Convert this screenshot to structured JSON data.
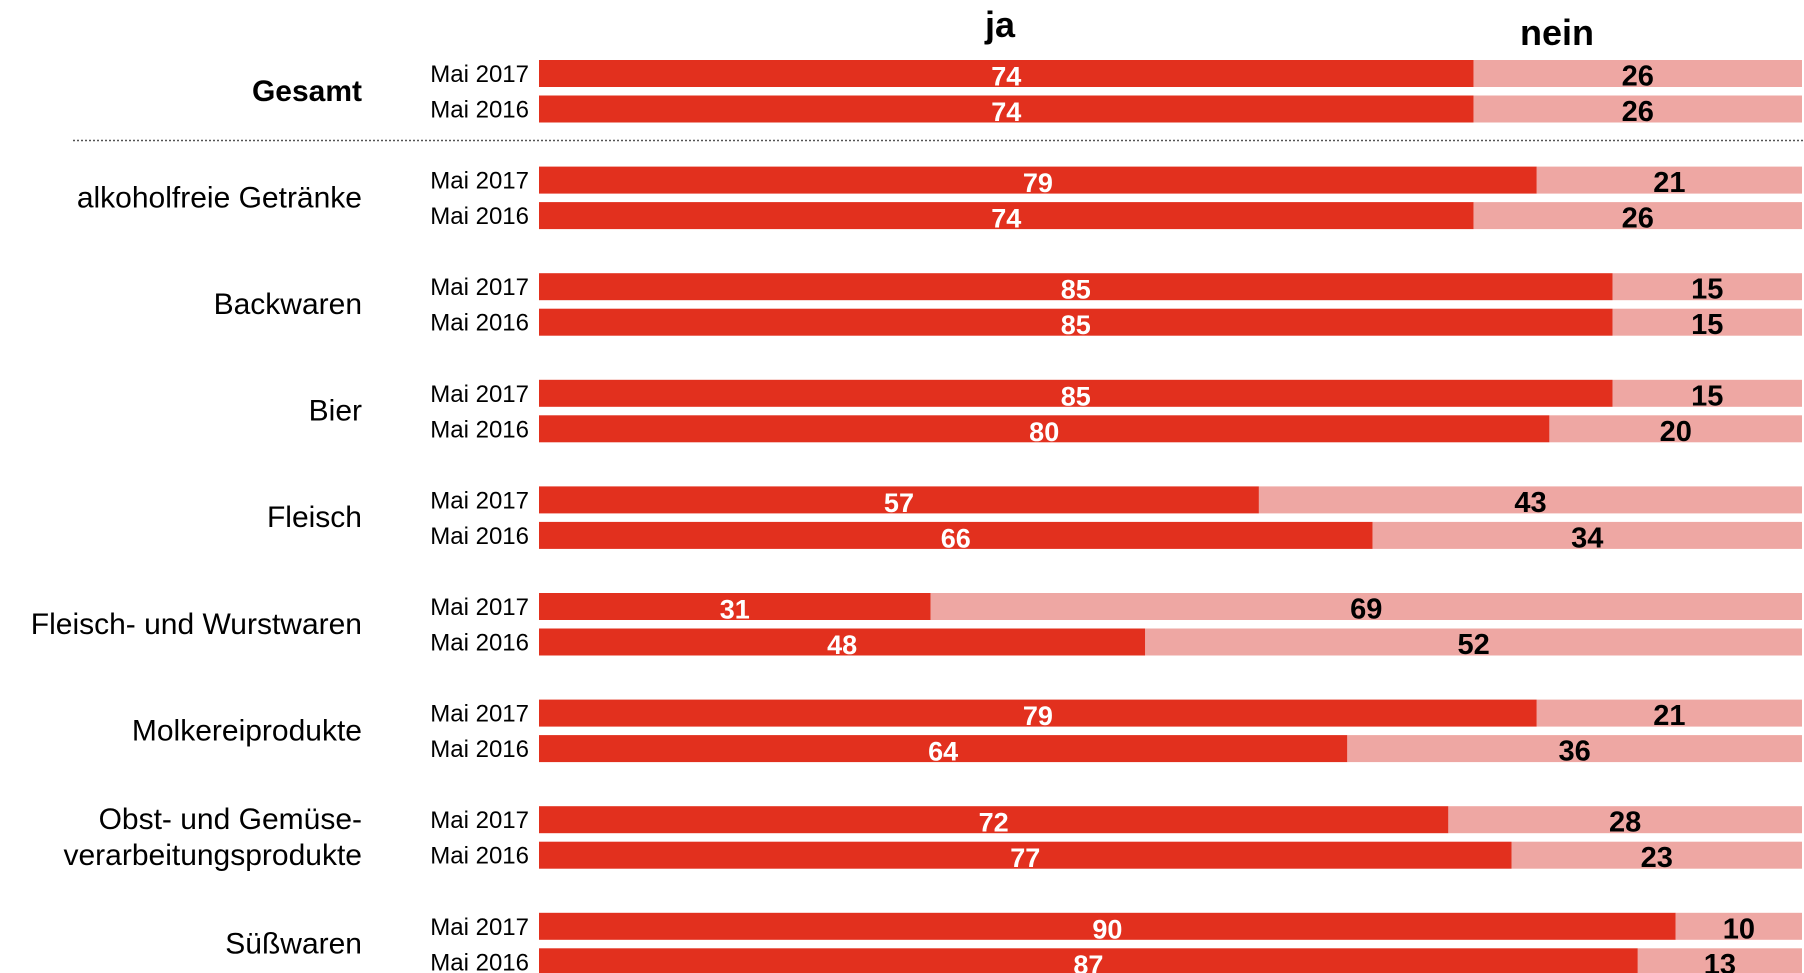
{
  "chart_data": {
    "type": "bar",
    "orientation": "horizontal",
    "stacked": true,
    "legend": {
      "ja": "ja",
      "nein": "nein"
    },
    "colors": {
      "ja": "#e2301e",
      "nein": "#eea7a3",
      "separator": "#555555"
    },
    "xlim": [
      0,
      100
    ],
    "separator_after_group": 0,
    "groups": [
      {
        "label": "Gesamt",
        "bold": true,
        "rows": [
          {
            "period": "Mai 2017",
            "ja": 74,
            "nein": 26
          },
          {
            "period": "Mai 2016",
            "ja": 74,
            "nein": 26
          }
        ]
      },
      {
        "label": "alkoholfreie Getränke",
        "rows": [
          {
            "period": "Mai 2017",
            "ja": 79,
            "nein": 21
          },
          {
            "period": "Mai 2016",
            "ja": 74,
            "nein": 26
          }
        ]
      },
      {
        "label": "Backwaren",
        "rows": [
          {
            "period": "Mai 2017",
            "ja": 85,
            "nein": 15
          },
          {
            "period": "Mai 2016",
            "ja": 85,
            "nein": 15
          }
        ]
      },
      {
        "label": "Bier",
        "rows": [
          {
            "period": "Mai 2017",
            "ja": 85,
            "nein": 15
          },
          {
            "period": "Mai 2016",
            "ja": 80,
            "nein": 20
          }
        ]
      },
      {
        "label": "Fleisch",
        "rows": [
          {
            "period": "Mai 2017",
            "ja": 57,
            "nein": 43
          },
          {
            "period": "Mai 2016",
            "ja": 66,
            "nein": 34
          }
        ]
      },
      {
        "label": "Fleisch- und Wurstwaren",
        "rows": [
          {
            "period": "Mai 2017",
            "ja": 31,
            "nein": 69
          },
          {
            "period": "Mai 2016",
            "ja": 48,
            "nein": 52
          }
        ]
      },
      {
        "label": "Molkereiprodukte",
        "rows": [
          {
            "period": "Mai 2017",
            "ja": 79,
            "nein": 21
          },
          {
            "period": "Mai 2016",
            "ja": 64,
            "nein": 36
          }
        ]
      },
      {
        "label": [
          "Obst- und Gemüse-",
          "verarbeitungsprodukte"
        ],
        "rows": [
          {
            "period": "Mai 2017",
            "ja": 72,
            "nein": 28
          },
          {
            "period": "Mai 2016",
            "ja": 77,
            "nein": 23
          }
        ]
      },
      {
        "label": "Süßwaren",
        "rows": [
          {
            "period": "Mai 2017",
            "ja": 90,
            "nein": 10
          },
          {
            "period": "Mai 2016",
            "ja": 87,
            "nein": 13
          }
        ]
      }
    ]
  }
}
